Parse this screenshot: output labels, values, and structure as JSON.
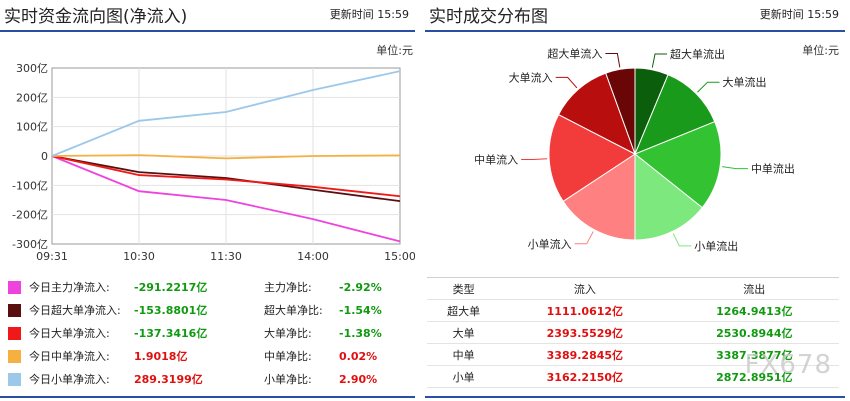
{
  "flow": {
    "title": "实时资金流向图(净流入)",
    "update_label": "更新时间 15:59",
    "unit": "单位:元",
    "chart_data": {
      "type": "line",
      "x": [
        "09:31",
        "10:30",
        "11:30",
        "14:00",
        "15:00"
      ],
      "y_ticks": [
        "300亿",
        "200亿",
        "100亿",
        "0",
        "-100亿",
        "-200亿",
        "-300亿"
      ],
      "ylim": [
        -300,
        300
      ],
      "series": [
        {
          "name": "今日主力净流入",
          "color": "#ee44dd",
          "values": [
            0,
            -120,
            -150,
            -215,
            -291.2
          ]
        },
        {
          "name": "今日超大单净流入",
          "color": "#5a0f0f",
          "values": [
            0,
            -55,
            -75,
            -115,
            -153.9
          ]
        },
        {
          "name": "今日大单净流入",
          "color": "#f01818",
          "values": [
            0,
            -65,
            -80,
            -105,
            -137.3
          ]
        },
        {
          "name": "今日中单净流入",
          "color": "#f5b040",
          "values": [
            0,
            3,
            -8,
            0,
            1.9
          ]
        },
        {
          "name": "今日小单净流入",
          "color": "#9cc8ea",
          "values": [
            0,
            120,
            150,
            225,
            289.3
          ]
        }
      ]
    },
    "legend": [
      {
        "label": "今日主力净流入:",
        "value": "-291.2217亿",
        "ratio_label": "主力净比:",
        "ratio": "-2.92%",
        "color": "#ee44dd",
        "sign": "neg"
      },
      {
        "label": "今日超大单净流入:",
        "value": "-153.8801亿",
        "ratio_label": "超大单净比:",
        "ratio": "-1.54%",
        "color": "#5a0f0f",
        "sign": "neg"
      },
      {
        "label": "今日大单净流入:",
        "value": "-137.3416亿",
        "ratio_label": "大单净比:",
        "ratio": "-1.38%",
        "color": "#f01818",
        "sign": "neg"
      },
      {
        "label": "今日中单净流入:",
        "value": "1.9018亿",
        "ratio_label": "中单净比:",
        "ratio": "0.02%",
        "color": "#f5b040",
        "sign": "pos"
      },
      {
        "label": "今日小单净流入:",
        "value": "289.3199亿",
        "ratio_label": "小单净比:",
        "ratio": "2.90%",
        "color": "#9cc8ea",
        "sign": "pos"
      }
    ]
  },
  "dist": {
    "title": "实时成交分布图",
    "update_label": "更新时间 15:59",
    "unit": "单位:元",
    "chart_data": {
      "type": "pie",
      "slices": [
        {
          "name": "超大单流出",
          "value": 1264.9413,
          "color": "#0b5e0b"
        },
        {
          "name": "大单流出",
          "value": 2530.8944,
          "color": "#1a9a1a"
        },
        {
          "name": "中单流出",
          "value": 3387.3877,
          "color": "#32c232"
        },
        {
          "name": "小单流出",
          "value": 2872.8951,
          "color": "#7de87d"
        },
        {
          "name": "小单流入",
          "value": 3162.215,
          "color": "#ff8080"
        },
        {
          "name": "中单流入",
          "value": 3389.2845,
          "color": "#f23c3c"
        },
        {
          "name": "大单流入",
          "value": 2393.5529,
          "color": "#b80e0e"
        },
        {
          "name": "超大单流入",
          "value": 1111.0612,
          "color": "#6a0606"
        }
      ]
    },
    "table": {
      "headers": [
        "类型",
        "流入",
        "流出"
      ],
      "rows": [
        [
          "超大单",
          "1111.0612亿",
          "1264.9413亿"
        ],
        [
          "大单",
          "2393.5529亿",
          "2530.8944亿"
        ],
        [
          "中单",
          "3389.2845亿",
          "3387.3877亿"
        ],
        [
          "小单",
          "3162.2150亿",
          "2872.8951亿"
        ]
      ]
    }
  },
  "watermark": "FX678"
}
